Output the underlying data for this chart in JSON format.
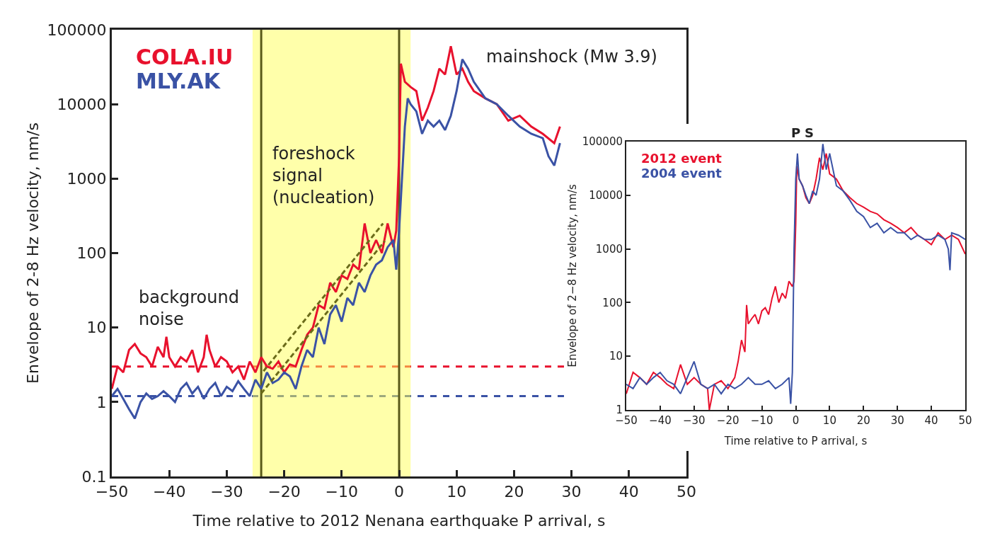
{
  "chart_data": [
    {
      "type": "line",
      "xlabel": "Time relative to 2012 Nenana earthquake P arrival, s",
      "ylabel": "Envelope of 2-8 Hz velocity, nm/s",
      "log": "y",
      "xlim": [
        -50,
        50
      ],
      "xticks": [
        {
          "value": -50,
          "label": "−50"
        },
        {
          "value": -40,
          "label": "−40"
        },
        {
          "value": -30,
          "label": "−30"
        },
        {
          "value": -20,
          "label": "−20"
        },
        {
          "value": -10,
          "label": "−10"
        },
        0,
        10,
        20,
        30,
        40,
        50
      ],
      "ylim": [
        0.1,
        100000
      ],
      "yticks": [
        0.1,
        1,
        10,
        100,
        1000,
        10000,
        100000
      ],
      "legend": "top left",
      "series": [
        {
          "name": "COLA.IU",
          "color": "#e8112d",
          "x": [
            -50,
            -49,
            -48,
            -47,
            -46,
            -45,
            -44,
            -43,
            -42,
            -41,
            -40.5,
            -40,
            -39,
            -38,
            -37,
            -36,
            -35,
            -34,
            -33.5,
            -33,
            -32,
            -31,
            -30,
            -29,
            -28,
            -27,
            -26,
            -25,
            -24,
            -23,
            -22,
            -21,
            -20,
            -19,
            -18,
            -17,
            -16,
            -15,
            -14,
            -13,
            -12,
            -11,
            -10,
            -9,
            -8,
            -7,
            -6,
            -5,
            -4,
            -3,
            -2,
            -1,
            -0.5,
            0,
            0.3,
            1,
            2,
            3,
            4,
            5,
            6,
            7,
            8,
            9,
            10,
            11,
            12,
            13,
            15,
            17,
            19,
            21,
            23,
            25,
            27,
            28
          ],
          "values": [
            1.5,
            3,
            2.5,
            5,
            6,
            4.5,
            4,
            3,
            5.5,
            4,
            7.5,
            4,
            3,
            4,
            3.5,
            5,
            2.5,
            4,
            8,
            5,
            3,
            4,
            3.5,
            2.5,
            3,
            2,
            3.5,
            2.5,
            4,
            3,
            2.8,
            3.5,
            2.5,
            3.2,
            3,
            5,
            8,
            10,
            20,
            18,
            40,
            30,
            50,
            45,
            70,
            60,
            250,
            100,
            150,
            100,
            250,
            120,
            200,
            2000,
            35000,
            20000,
            17000,
            15000,
            6000,
            9000,
            15000,
            30000,
            25000,
            60000,
            25000,
            30000,
            20000,
            15000,
            12000,
            10000,
            6000,
            7000,
            5000,
            4000,
            3000,
            5000
          ]
        },
        {
          "name": "MLY.AK",
          "color": "#3a52a5",
          "x": [
            -50,
            -49,
            -48,
            -47,
            -46,
            -45,
            -44,
            -43,
            -42,
            -41,
            -40,
            -39,
            -38,
            -37,
            -36,
            -35,
            -34,
            -33,
            -32,
            -31,
            -30,
            -29,
            -28,
            -27,
            -26,
            -25,
            -24,
            -23,
            -22,
            -21,
            -20,
            -19,
            -18,
            -17,
            -16,
            -15,
            -14,
            -13,
            -12,
            -11,
            -10,
            -9,
            -8,
            -7,
            -6,
            -5,
            -4,
            -3,
            -2,
            -1,
            -0.5,
            0,
            0.5,
            1,
            1.5,
            2,
            3,
            4,
            5,
            6,
            7,
            8,
            9,
            10,
            11,
            12,
            13,
            15,
            17,
            19,
            21,
            23,
            25,
            26,
            27,
            28
          ],
          "values": [
            1.2,
            1.5,
            1.1,
            0.8,
            0.6,
            1.0,
            1.3,
            1.1,
            1.2,
            1.4,
            1.2,
            1.0,
            1.5,
            1.8,
            1.3,
            1.6,
            1.1,
            1.5,
            1.8,
            1.2,
            1.6,
            1.4,
            1.9,
            1.5,
            1.2,
            2.0,
            1.5,
            2.5,
            1.8,
            2.0,
            2.5,
            2.2,
            1.5,
            3,
            5,
            4,
            10,
            6,
            15,
            20,
            12,
            25,
            20,
            40,
            30,
            50,
            70,
            80,
            120,
            150,
            60,
            200,
            1000,
            5000,
            12000,
            10000,
            8000,
            4000,
            6000,
            5000,
            6000,
            4500,
            7000,
            15000,
            40000,
            30000,
            20000,
            12000,
            10000,
            7000,
            5000,
            4000,
            3500,
            2000,
            1500,
            3000
          ]
        },
        {
          "type": "line",
          "line_style": "dashed",
          "color": "#6b6b1a",
          "x": [
            -23.6,
            -2.8
          ],
          "values": [
            2.6,
            250
          ]
        },
        {
          "type": "line",
          "line_style": "dashed",
          "color": "#6b6b1a",
          "x": [
            -24,
            -2.5
          ],
          "values": [
            1.3,
            145
          ]
        }
      ],
      "ref_lines": [
        {
          "axis": "y",
          "value": 3,
          "color": "#e8112d",
          "line_style": "dashed"
        },
        {
          "axis": "y",
          "value": 1.2,
          "color": "#3a52a5",
          "line_style": "dashed"
        },
        {
          "axis": "x",
          "value": -24,
          "color": "#5a5a1a",
          "line_style": "solid"
        },
        {
          "axis": "x",
          "value": 0,
          "color": "#5a5a1a",
          "line_style": "solid"
        }
      ],
      "bands": [
        {
          "axis": "x",
          "from": -25.5,
          "to": 2,
          "color": "#ffff55"
        }
      ],
      "annotations": [
        "background\nnoise",
        "foreshock\nsignal\n(nucleation)",
        "mainshock (Mw 3.9)"
      ]
    },
    {
      "type": "line",
      "xlabel": "Time relative to P arrival, s",
      "ylabel": "Envelope of 2−8 Hz velocity, nm/s",
      "log": "y",
      "xlim": [
        -50,
        50
      ],
      "xticks": [
        {
          "value": -50,
          "label": "−50"
        },
        {
          "value": -40,
          "label": "−40"
        },
        {
          "value": -30,
          "label": "−30"
        },
        {
          "value": -20,
          "label": "−20"
        },
        {
          "value": -10,
          "label": "−10"
        },
        0,
        10,
        20,
        30,
        40,
        50
      ],
      "ylim": [
        1,
        100000
      ],
      "yticks": [
        1,
        10,
        100,
        1000,
        10000,
        100000
      ],
      "legend": "top left",
      "series": [
        {
          "name": "2012 event",
          "color": "#e8112d",
          "x": [
            -50,
            -48,
            -46,
            -44,
            -42,
            -40,
            -38,
            -36,
            -34,
            -32,
            -30,
            -28,
            -26,
            -25.5,
            -24,
            -22,
            -20,
            -18,
            -17,
            -16,
            -15,
            -14.5,
            -14,
            -13,
            -12,
            -11,
            -10,
            -9,
            -8,
            -7,
            -6,
            -5,
            -4,
            -3,
            -2,
            -1,
            -0.5,
            0,
            0.3,
            1,
            2,
            3,
            4,
            5,
            6,
            7,
            8,
            9,
            10,
            12,
            14,
            16,
            18,
            20,
            22,
            24,
            26,
            28,
            30,
            32,
            34,
            36,
            38,
            40,
            42,
            44,
            46,
            48,
            50
          ],
          "values": [
            2,
            5,
            4,
            3,
            5,
            4,
            3,
            2.5,
            7,
            3,
            4,
            3,
            2.5,
            1,
            3,
            3.5,
            2.5,
            4,
            8,
            20,
            12,
            90,
            40,
            50,
            60,
            40,
            70,
            80,
            60,
            120,
            200,
            100,
            150,
            120,
            250,
            200,
            250,
            3000,
            35000,
            20000,
            15000,
            9000,
            7000,
            10000,
            20000,
            50000,
            30000,
            60000,
            25000,
            20000,
            12000,
            9000,
            7000,
            6000,
            5000,
            4500,
            3500,
            3000,
            2500,
            2000,
            2500,
            1800,
            1500,
            1200,
            2000,
            1500,
            1800,
            1500,
            800
          ]
        },
        {
          "name": "2004 event",
          "color": "#3a52a5",
          "x": [
            -50,
            -48,
            -46,
            -44,
            -42,
            -40,
            -38,
            -36,
            -34,
            -32,
            -30,
            -28,
            -26,
            -24,
            -22,
            -20,
            -18,
            -16,
            -14,
            -12,
            -10,
            -8,
            -6,
            -4,
            -2,
            -1.5,
            -1,
            -0.5,
            0,
            0.5,
            1,
            2,
            3,
            4,
            5,
            6,
            7,
            8,
            9,
            10,
            12,
            14,
            16,
            18,
            20,
            22,
            24,
            26,
            28,
            30,
            32,
            34,
            36,
            38,
            40,
            42,
            44,
            45,
            45.5,
            46,
            48,
            50
          ],
          "values": [
            3,
            2.5,
            4,
            3,
            4,
            5,
            3.5,
            3,
            2,
            4,
            8,
            3,
            2.5,
            3,
            2,
            3,
            2.5,
            3,
            4,
            3,
            3,
            3.5,
            2.5,
            3,
            4,
            1.3,
            5,
            1000,
            20000,
            60000,
            20000,
            15000,
            10000,
            7000,
            12000,
            10000,
            20000,
            90000,
            30000,
            60000,
            15000,
            12000,
            8000,
            5000,
            4000,
            2500,
            3000,
            2000,
            2500,
            2000,
            2000,
            1500,
            1800,
            1500,
            1500,
            1800,
            1500,
            1000,
            400,
            2000,
            1800,
            1500
          ]
        }
      ],
      "annotations": [
        "P",
        "S"
      ]
    }
  ]
}
